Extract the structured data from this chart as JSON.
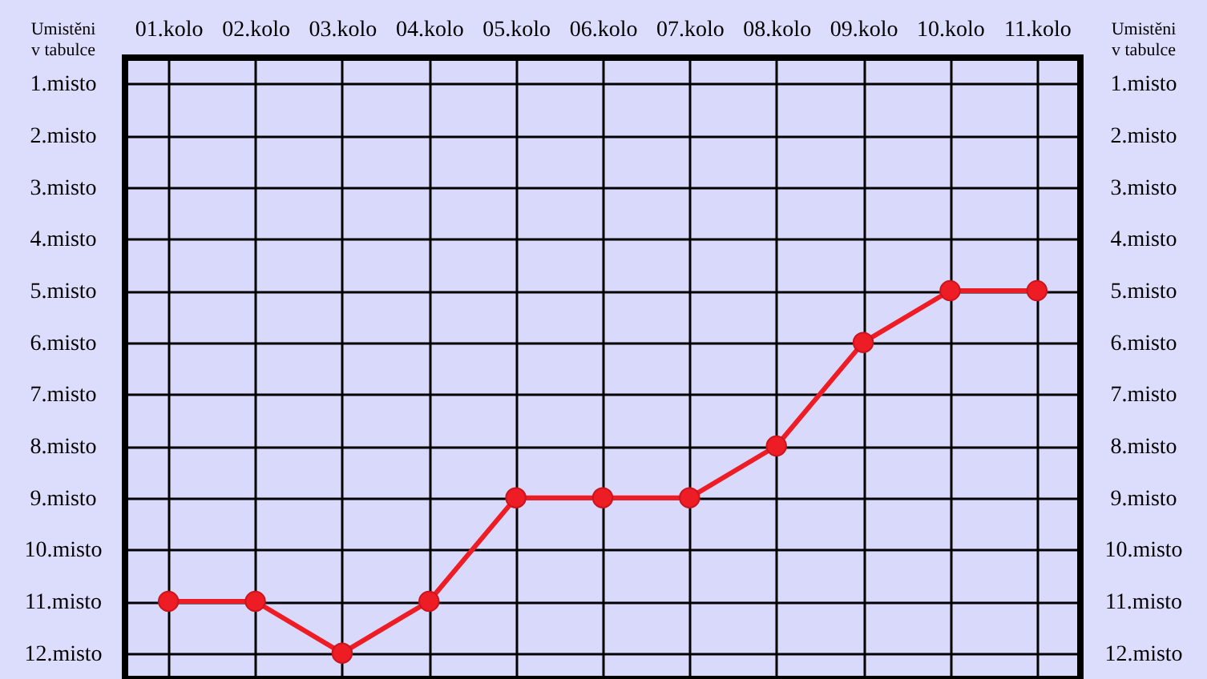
{
  "chart_data": {
    "type": "line",
    "ylabel": "Umistěni\nv tabulce",
    "y2label": "Umistěni\nv tabulce",
    "categories": [
      "01.kolo",
      "02.kolo",
      "03.kolo",
      "04.kolo",
      "05.kolo",
      "06.kolo",
      "07.kolo",
      "08.kolo",
      "09.kolo",
      "10.kolo",
      "11.kolo"
    ],
    "series": [
      {
        "color": "#ee1c24",
        "values": [
          11,
          11,
          12,
          11,
          9,
          9,
          9,
          8,
          6,
          5,
          5
        ]
      }
    ],
    "ylim": [
      12.5,
      0.5
    ],
    "yticks": [
      {
        "value": 1,
        "label": "1.misto"
      },
      {
        "value": 2,
        "label": "2.misto"
      },
      {
        "value": 3,
        "label": "3.misto"
      },
      {
        "value": 4,
        "label": "4.misto"
      },
      {
        "value": 5,
        "label": "5.misto"
      },
      {
        "value": 6,
        "label": "6.misto"
      },
      {
        "value": 7,
        "label": "7.misto"
      },
      {
        "value": 8,
        "label": "8.misto"
      },
      {
        "value": 9,
        "label": "9.misto"
      },
      {
        "value": 10,
        "label": "10.misto"
      },
      {
        "value": 11,
        "label": "11.misto"
      },
      {
        "value": 12,
        "label": "12.misto"
      }
    ],
    "y2lim": [
      12.5,
      0.5
    ],
    "y2ticks": [
      {
        "value": 1,
        "label": "1.misto"
      },
      {
        "value": 2,
        "label": "2.misto"
      },
      {
        "value": 3,
        "label": "3.misto"
      },
      {
        "value": 4,
        "label": "4.misto"
      },
      {
        "value": 5,
        "label": "5.misto"
      },
      {
        "value": 6,
        "label": "6.misto"
      },
      {
        "value": 7,
        "label": "7.misto"
      },
      {
        "value": 8,
        "label": "8.misto"
      },
      {
        "value": 9,
        "label": "9.misto"
      },
      {
        "value": 10,
        "label": "10.misto"
      },
      {
        "value": 11,
        "label": "11.misto"
      },
      {
        "value": 12,
        "label": "12.misto"
      }
    ],
    "grid": true,
    "marker": "circle"
  }
}
